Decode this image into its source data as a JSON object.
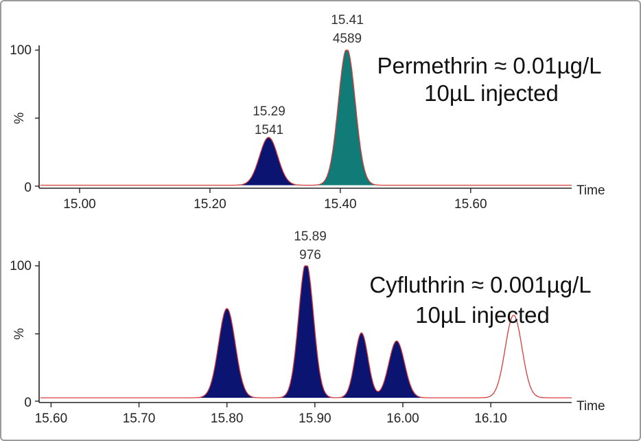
{
  "colors": {
    "navy": "#0b1470",
    "teal": "#117b77",
    "trace": "#d83a3a",
    "axis": "#222222"
  },
  "chart_data": [
    {
      "type": "area",
      "xlabel": "Time",
      "ylabel": "%",
      "xlim": [
        14.94,
        15.755
      ],
      "ylim": [
        0,
        100
      ],
      "xticks": [
        "15.00",
        "15.20",
        "15.40",
        "15.60"
      ],
      "xtick_values": [
        15.0,
        15.2,
        15.4,
        15.6
      ],
      "yticks": [
        "0",
        "100"
      ],
      "baseline": 1.2,
      "trace_color": "red",
      "peaks": [
        {
          "rt": 15.29,
          "rt_label": "15.29",
          "area_label": "1541",
          "height": 35,
          "width": 0.014,
          "fill": "navy"
        },
        {
          "rt": 15.41,
          "rt_label": "15.41",
          "area_label": "4589",
          "height": 100,
          "width": 0.013,
          "fill": "teal"
        }
      ],
      "annotation": [
        "Permethrin ≈ 0.01µg/L",
        "10µL injected"
      ]
    },
    {
      "type": "area",
      "xlabel": "Time",
      "ylabel": "%",
      "xlim": [
        15.588,
        16.192
      ],
      "ylim": [
        0,
        100
      ],
      "xticks": [
        "15.60",
        "15.70",
        "15.80",
        "15.90",
        "16.00",
        "16.10"
      ],
      "xtick_values": [
        15.6,
        15.7,
        15.8,
        15.9,
        16.0,
        16.1
      ],
      "yticks": [
        "0",
        "100"
      ],
      "baseline": 2.5,
      "trace_color": "red",
      "peaks": [
        {
          "rt": 15.8,
          "height": 66,
          "width": 0.0095,
          "fill": "navy"
        },
        {
          "rt": 15.89,
          "rt_label": "15.89",
          "area_label": "976",
          "height": 100,
          "width": 0.0085,
          "fill": "navy"
        },
        {
          "rt": 15.953,
          "height": 48,
          "width": 0.0075,
          "fill": "navy"
        },
        {
          "rt": 15.993,
          "height": 42,
          "width": 0.009,
          "fill": "navy"
        },
        {
          "rt": 16.126,
          "height": 61,
          "width": 0.0095,
          "fill": "none"
        }
      ],
      "integrated_range": [
        15.765,
        16.04
      ],
      "annotation": [
        "Cyfluthrin ≈ 0.001µg/L",
        "10µL injected"
      ]
    }
  ]
}
